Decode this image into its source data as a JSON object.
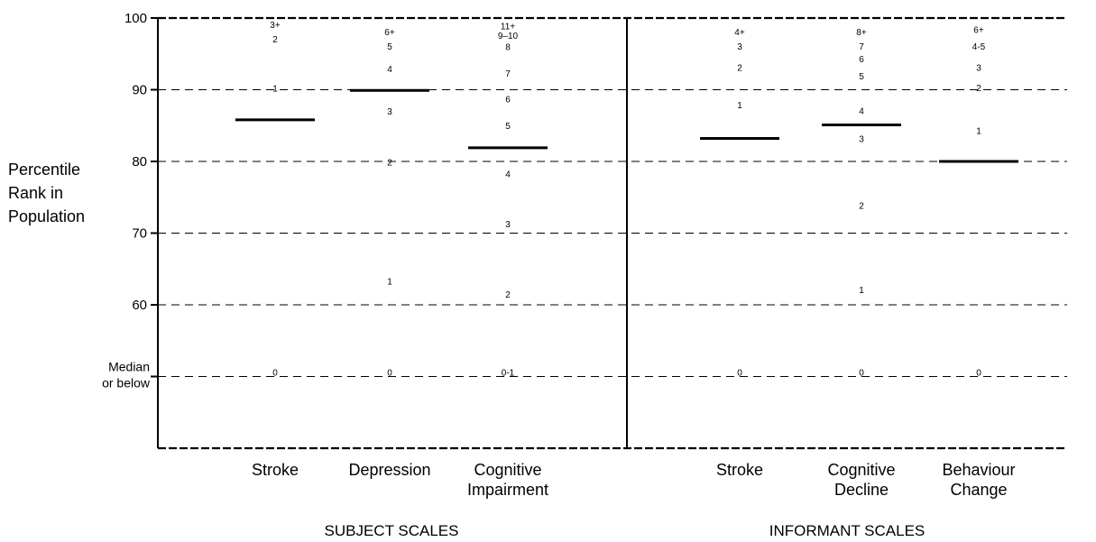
{
  "chart_data": {
    "type": "scatter",
    "ylabel": [
      "Percentile",
      "Rank in",
      "Population"
    ],
    "ylim": [
      40,
      100
    ],
    "yticks": [
      100,
      90,
      80,
      70,
      60
    ],
    "median_label": [
      "Median",
      "or below"
    ],
    "median_value": 50,
    "grid": true,
    "groups": [
      {
        "label": "SUBJECT SCALES",
        "categories": [
          {
            "name": [
              "Stroke"
            ],
            "median": 85.8,
            "scores": [
              {
                "label": "3+",
                "y": 99.0
              },
              {
                "label": "2",
                "y": 97.0
              },
              {
                "label": "1",
                "y": 90.1
              },
              {
                "label": "0",
                "y": 50.5
              }
            ]
          },
          {
            "name": [
              "Depression"
            ],
            "median": 89.9,
            "scores": [
              {
                "label": "6+",
                "y": 98.0
              },
              {
                "label": "5",
                "y": 96.0
              },
              {
                "label": "4",
                "y": 92.8
              },
              {
                "label": "3",
                "y": 86.9
              },
              {
                "label": "2",
                "y": 79.8
              },
              {
                "label": "1",
                "y": 63.2
              },
              {
                "label": "0",
                "y": 50.5
              }
            ]
          },
          {
            "name": [
              "Cognitive",
              "Impairment"
            ],
            "median": 81.9,
            "scores": [
              {
                "label": "11+",
                "y": 98.8
              },
              {
                "label": "9–10",
                "y": 97.5
              },
              {
                "label": "8",
                "y": 95.9
              },
              {
                "label": "7",
                "y": 92.2
              },
              {
                "label": "6",
                "y": 88.6
              },
              {
                "label": "5",
                "y": 84.9
              },
              {
                "label": "4",
                "y": 78.2
              },
              {
                "label": "3",
                "y": 71.2
              },
              {
                "label": "2",
                "y": 61.4
              },
              {
                "label": "0-1",
                "y": 50.5
              }
            ]
          }
        ]
      },
      {
        "label": "INFORMANT SCALES",
        "categories": [
          {
            "name": [
              "Stroke"
            ],
            "median": 83.2,
            "scores": [
              {
                "label": "4+",
                "y": 98.0
              },
              {
                "label": "3",
                "y": 96.0
              },
              {
                "label": "2",
                "y": 93.0
              },
              {
                "label": "1",
                "y": 87.8
              },
              {
                "label": "0",
                "y": 50.5
              }
            ]
          },
          {
            "name": [
              "Cognitive",
              "Decline"
            ],
            "median": 85.1,
            "scores": [
              {
                "label": "8+",
                "y": 98.0
              },
              {
                "label": "7",
                "y": 96.0
              },
              {
                "label": "6",
                "y": 94.2
              },
              {
                "label": "5",
                "y": 91.8
              },
              {
                "label": "4",
                "y": 87.0
              },
              {
                "label": "3",
                "y": 83.1
              },
              {
                "label": "2",
                "y": 73.8
              },
              {
                "label": "1",
                "y": 62.0
              },
              {
                "label": "0",
                "y": 50.5
              }
            ]
          },
          {
            "name": [
              "Behaviour",
              "Change"
            ],
            "median": 80.0,
            "scores": [
              {
                "label": "6+",
                "y": 98.3
              },
              {
                "label": "4-5",
                "y": 96.0
              },
              {
                "label": "3",
                "y": 93.0
              },
              {
                "label": "2",
                "y": 90.2
              },
              {
                "label": "1",
                "y": 84.2
              },
              {
                "label": "0",
                "y": 50.5
              }
            ]
          }
        ]
      }
    ]
  }
}
